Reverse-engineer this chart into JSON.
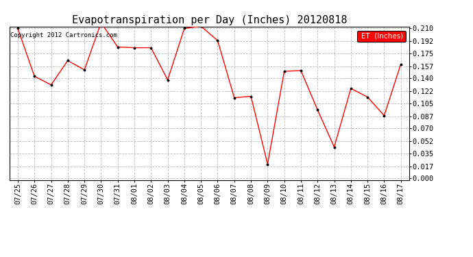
{
  "title": "Evapotranspiration per Day (Inches) 20120818",
  "copyright": "Copyright 2012 Cartronics.com",
  "legend_label": "ET  (Inches)",
  "legend_bg": "#ff0000",
  "legend_text_color": "#ffffff",
  "x_labels": [
    "07/25",
    "07/26",
    "07/27",
    "07/28",
    "07/29",
    "07/30",
    "07/31",
    "08/01",
    "08/02",
    "08/03",
    "08/04",
    "08/05",
    "08/06",
    "08/07",
    "08/08",
    "08/09",
    "08/10",
    "08/11",
    "08/12",
    "08/13",
    "08/14",
    "08/15",
    "08/16",
    "08/17"
  ],
  "y_values": [
    0.21,
    0.143,
    0.131,
    0.165,
    0.152,
    0.218,
    0.184,
    0.183,
    0.183,
    0.138,
    0.21,
    0.213,
    0.193,
    0.113,
    0.115,
    0.02,
    0.15,
    0.151,
    0.096,
    0.044,
    0.126,
    0.114,
    0.088,
    0.16
  ],
  "y_ticks": [
    0.0,
    0.017,
    0.035,
    0.052,
    0.07,
    0.087,
    0.105,
    0.122,
    0.14,
    0.157,
    0.175,
    0.192,
    0.21
  ],
  "ylim_min": 0.0,
  "ylim_max": 0.21,
  "line_color": "#ff0000",
  "marker_color": "#000000",
  "bg_color": "#ffffff",
  "plot_bg_color": "#ffffff",
  "grid_color": "#bbbbbb",
  "grid_style": "--",
  "title_fontsize": 11,
  "copyright_fontsize": 6.5,
  "tick_fontsize": 7.5
}
